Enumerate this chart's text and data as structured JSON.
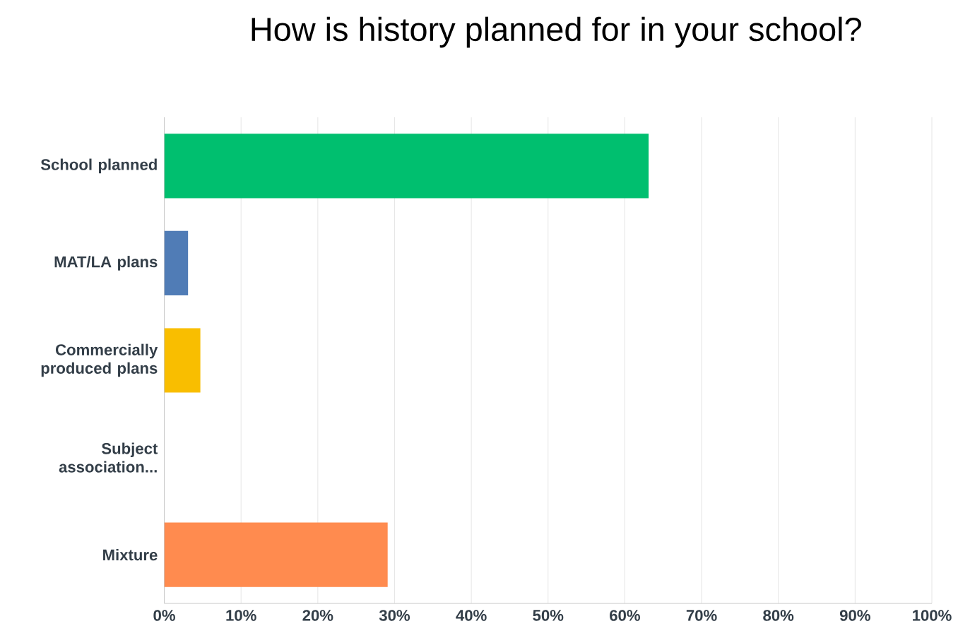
{
  "chart_data": {
    "type": "bar",
    "orientation": "horizontal",
    "title": "How is history planned for in your school?",
    "categories": [
      "School planned",
      "MAT/LA plans",
      "Commercially produced plans",
      "Subject association...",
      "Mixture"
    ],
    "values": [
      63.1,
      3.1,
      4.7,
      0,
      29.1
    ],
    "colors": [
      "#00bf6f",
      "#507cb6",
      "#f9be00",
      "#6bc8cd",
      "#ff8b4f"
    ],
    "xlim": [
      0,
      100
    ],
    "xticks": [
      {
        "value": 0,
        "label": "0%"
      },
      {
        "value": 10,
        "label": "10%"
      },
      {
        "value": 20,
        "label": "20%"
      },
      {
        "value": 30,
        "label": "30%"
      },
      {
        "value": 40,
        "label": "40%"
      },
      {
        "value": 50,
        "label": "50%"
      },
      {
        "value": 60,
        "label": "60%"
      },
      {
        "value": 70,
        "label": "70%"
      },
      {
        "value": 80,
        "label": "80%"
      },
      {
        "value": 90,
        "label": "90%"
      },
      {
        "value": 100,
        "label": "100%"
      }
    ],
    "grid": "x"
  }
}
